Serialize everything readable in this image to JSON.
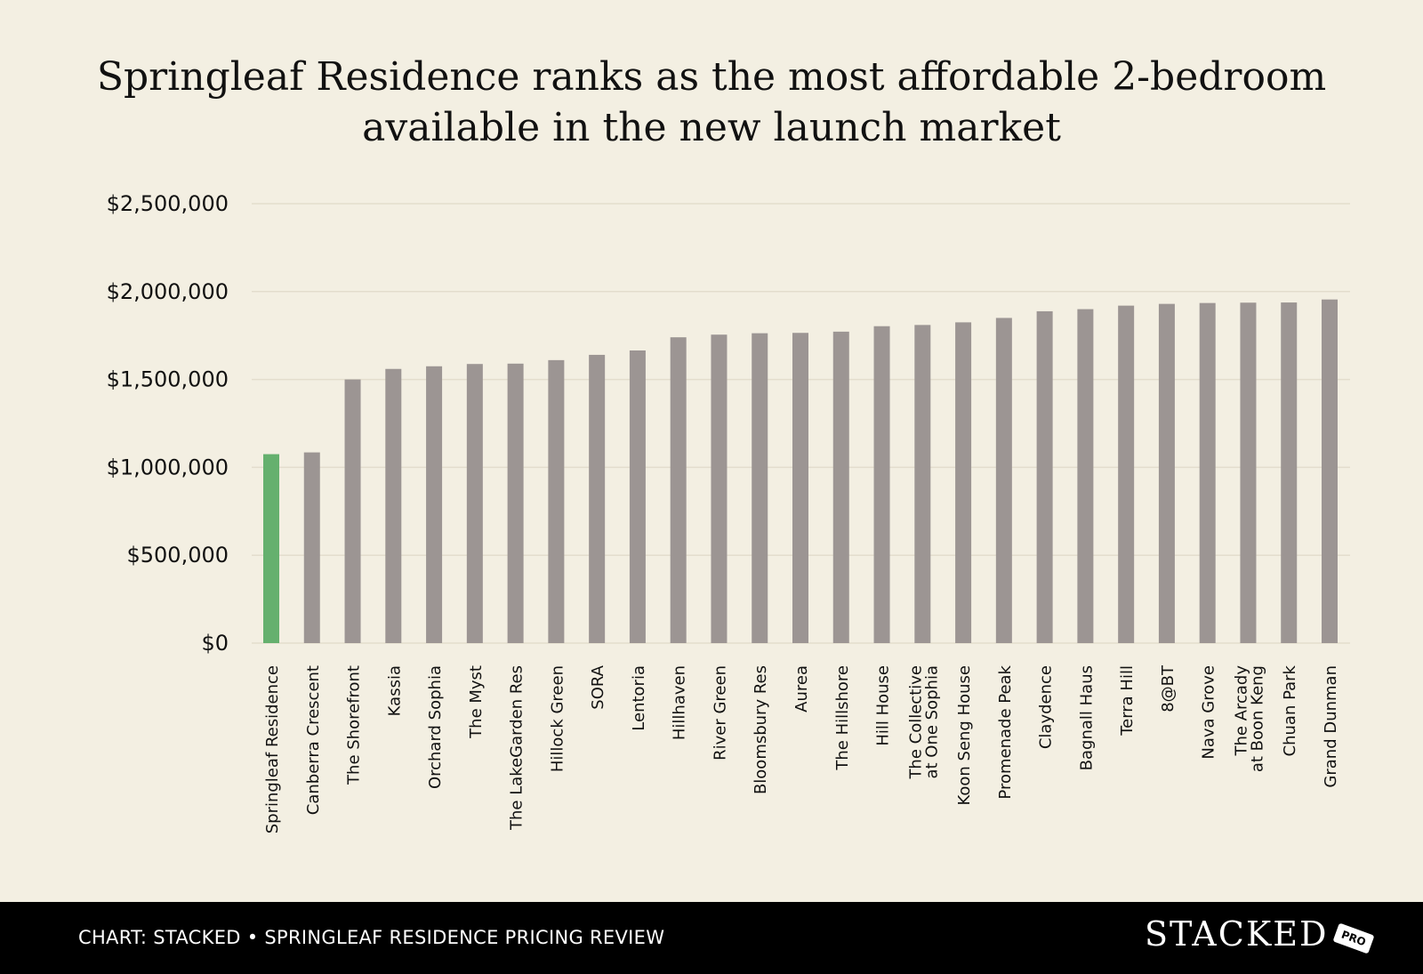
{
  "chart_data": {
    "type": "bar",
    "title": [
      "Springleaf Residence ranks as the most affordable 2-bedroom",
      "available in the new launch market"
    ],
    "xlabel": "",
    "ylabel": "",
    "ylim": [
      0,
      2500000
    ],
    "yticks": [
      0,
      500000,
      1000000,
      1500000,
      2000000,
      2500000
    ],
    "ytick_labels": [
      "$0",
      "$500,000",
      "$1,000,000",
      "$1,500,000",
      "$2,000,000",
      "$2,500,000"
    ],
    "grid": true,
    "highlight_color": "#65b06e",
    "bar_color": "#9c9593",
    "categories": [
      [
        "Springleaf Residence"
      ],
      [
        "Canberra Crescent"
      ],
      [
        "The Shorefront"
      ],
      [
        "Kassia"
      ],
      [
        "Orchard Sophia"
      ],
      [
        "The Myst"
      ],
      [
        "The LakeGarden Res"
      ],
      [
        "Hillock Green"
      ],
      [
        "SORA"
      ],
      [
        "Lentoria"
      ],
      [
        "Hillhaven"
      ],
      [
        "River Green"
      ],
      [
        "Bloomsbury Res"
      ],
      [
        "Aurea"
      ],
      [
        "The Hillshore"
      ],
      [
        "Hill House"
      ],
      [
        "The Collective",
        "at One Sophia"
      ],
      [
        "Koon Seng House"
      ],
      [
        "Promenade Peak"
      ],
      [
        "Claydence"
      ],
      [
        "Bagnall Haus"
      ],
      [
        "Terra Hill"
      ],
      [
        "8@BT"
      ],
      [
        "Nava Grove"
      ],
      [
        "The Arcady",
        "at Boon Keng"
      ],
      [
        "Chuan Park"
      ],
      [
        "Grand Dunman"
      ]
    ],
    "values": [
      1075000,
      1085000,
      1500000,
      1560000,
      1575000,
      1588000,
      1590000,
      1610000,
      1640000,
      1665000,
      1740000,
      1755000,
      1763000,
      1765000,
      1772000,
      1803000,
      1810000,
      1825000,
      1850000,
      1888000,
      1900000,
      1920000,
      1930000,
      1935000,
      1937000,
      1938000,
      1955000
    ],
    "highlight_index": 0
  },
  "footer": {
    "caption": "CHART: STACKED • SPRINGLEAF RESIDENCE PRICING REVIEW",
    "logo_text": "STACKED",
    "logo_badge": "PRO"
  }
}
